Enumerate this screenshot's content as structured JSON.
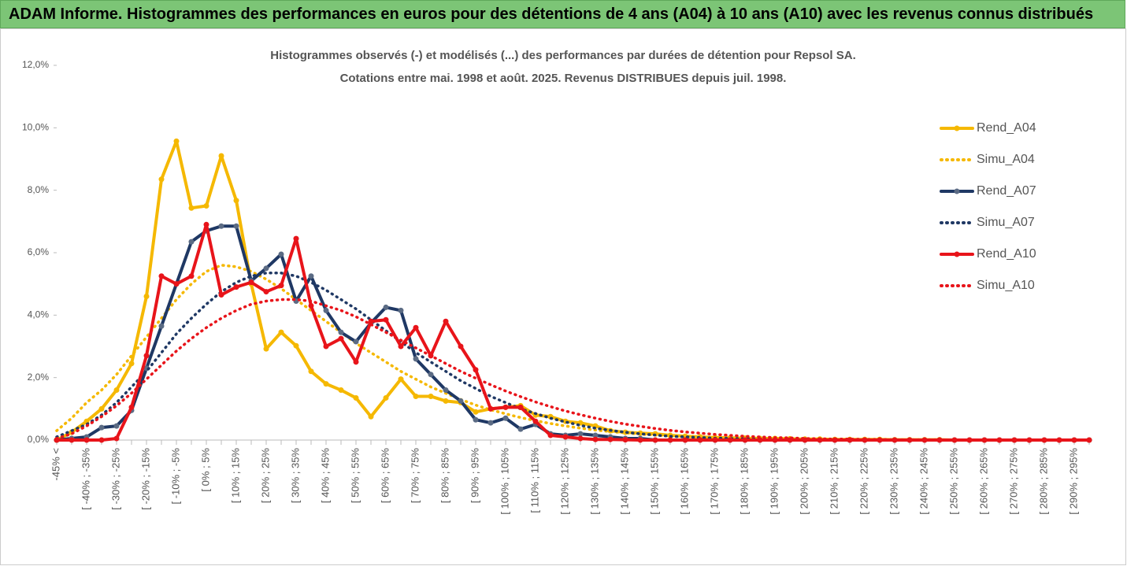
{
  "header": {
    "title": "ADAM Informe. Histogrammes des performances en euros pour des détentions de 4 ans (A04) à 10 ans (A10) avec les revenus connus distribués"
  },
  "chart_data": {
    "type": "line",
    "title": [
      "Histogrammes observés (-) et modélisés (...) des performances par durées de détention pour Repsol SA.",
      "Cotations entre mai. 1998 et août. 2025. Revenus DISTRIBUES depuis juil. 1998."
    ],
    "categories": [
      "-45% <",
      null,
      "[ -40% ; -35%",
      null,
      "[ -30% ; -25%",
      null,
      "[ -20% ; -15%",
      null,
      "[ -10% ; -5%",
      null,
      "[ 0% ; 5%",
      null,
      "[ 10% ; 15%",
      null,
      "[ 20% ; 25%",
      null,
      "[ 30% ; 35%",
      null,
      "[ 40% ; 45%",
      null,
      "[ 50% ; 55%",
      null,
      "[ 60% ; 65%",
      null,
      "[ 70% ; 75%",
      null,
      "[ 80% ; 85%",
      null,
      "[ 90% ; 95%",
      null,
      "[ 100% ; 105%",
      null,
      "[ 110% ; 115%",
      null,
      "[ 120% ; 125%",
      null,
      "[ 130% ; 135%",
      null,
      "[ 140% ; 145%",
      null,
      "[ 150% ; 155%",
      null,
      "[ 160% ; 165%",
      null,
      "[ 170% ; 175%",
      null,
      "[ 180% ; 185%",
      null,
      "[ 190% ; 195%",
      null,
      "[ 200% ; 205%",
      null,
      "[ 210% ; 215%",
      null,
      "[ 220% ; 225%",
      null,
      "[ 230% ; 235%",
      null,
      "[ 240% ; 245%",
      null,
      "[ 250% ; 255%",
      null,
      "[ 260% ; 265%",
      null,
      "[ 270% ; 275%",
      null,
      "[ 280% ; 285%",
      null,
      "[ 290% ; 295%",
      null
    ],
    "ylim": [
      0,
      12
    ],
    "yticks": [
      {
        "value": 0,
        "label": "0,0%"
      },
      {
        "value": 2,
        "label": "2,0%"
      },
      {
        "value": 4,
        "label": "4,0%"
      },
      {
        "value": 6,
        "label": "6,0%"
      },
      {
        "value": 8,
        "label": "8,0%"
      },
      {
        "value": 10,
        "label": "10,0%"
      },
      {
        "value": 12,
        "label": "12,0%"
      }
    ],
    "legend": "right",
    "series": [
      {
        "name": "Rend_A04",
        "color": "#f5b800",
        "style": "solid",
        "values": [
          0,
          0.25,
          0.6,
          1.0,
          1.6,
          2.45,
          4.6,
          8.35,
          9.57,
          7.43,
          7.5,
          9.1,
          7.67,
          5.0,
          2.92,
          3.45,
          3.02,
          2.2,
          1.8,
          1.6,
          1.35,
          0.75,
          1.35,
          1.95,
          1.4,
          1.4,
          1.25,
          1.2,
          0.9,
          1.0,
          1.05,
          1.1,
          0.8,
          0.75,
          0.6,
          0.55,
          0.45,
          0.3,
          0.25,
          0.22,
          0.2,
          0.15,
          0.12,
          0.1,
          0.08,
          0.07,
          0.06,
          0.05,
          0.05,
          0.04,
          0.03,
          0.03,
          0.02,
          0.02,
          0.02,
          0.02,
          0.01,
          0.01,
          0.01,
          0.01,
          0,
          0,
          0,
          0,
          0,
          0,
          0,
          0,
          0,
          0
        ]
      },
      {
        "name": "Simu_A04",
        "color": "#f5b800",
        "style": "dotted",
        "values": [
          0.3,
          0.7,
          1.2,
          1.6,
          2.1,
          2.7,
          3.3,
          3.9,
          4.5,
          5.0,
          5.4,
          5.6,
          5.55,
          5.4,
          5.15,
          4.85,
          4.5,
          4.15,
          3.8,
          3.45,
          3.1,
          2.8,
          2.5,
          2.2,
          1.95,
          1.7,
          1.5,
          1.3,
          1.12,
          0.97,
          0.84,
          0.72,
          0.62,
          0.53,
          0.45,
          0.38,
          0.32,
          0.27,
          0.23,
          0.19,
          0.16,
          0.13,
          0.11,
          0.09,
          0.07,
          0.06,
          0.05,
          0.04,
          0.03,
          0.03,
          0.02,
          0.02,
          0.02,
          0.01,
          0.01,
          0.01,
          0.01,
          0.01,
          0,
          0,
          0,
          0,
          0,
          0,
          0,
          0,
          0,
          0,
          0,
          0
        ]
      },
      {
        "name": "Rend_A07",
        "color": "#1f3864",
        "style": "solid",
        "values": [
          0,
          0.05,
          0.1,
          0.4,
          0.45,
          0.95,
          2.3,
          3.65,
          5.0,
          6.35,
          6.7,
          6.85,
          6.85,
          5.1,
          5.5,
          5.95,
          4.45,
          5.25,
          4.15,
          3.45,
          3.15,
          3.75,
          4.25,
          4.15,
          2.6,
          2.1,
          1.6,
          1.25,
          0.65,
          0.55,
          0.7,
          0.35,
          0.5,
          0.2,
          0.15,
          0.2,
          0.15,
          0.1,
          0.05,
          0.05,
          0,
          0,
          0,
          0,
          0,
          0,
          0,
          0,
          0,
          0,
          0,
          0,
          0,
          0,
          0,
          0,
          0,
          0,
          0,
          0,
          0,
          0,
          0,
          0,
          0,
          0,
          0,
          0,
          0,
          0
        ]
      },
      {
        "name": "Simu_A07",
        "color": "#1f3864",
        "style": "dotted",
        "values": [
          0.1,
          0.3,
          0.5,
          0.8,
          1.2,
          1.7,
          2.2,
          2.8,
          3.4,
          3.9,
          4.35,
          4.75,
          5.05,
          5.25,
          5.35,
          5.35,
          5.25,
          5.05,
          4.8,
          4.5,
          4.2,
          3.85,
          3.5,
          3.15,
          2.8,
          2.5,
          2.2,
          1.9,
          1.65,
          1.4,
          1.2,
          1.0,
          0.85,
          0.7,
          0.58,
          0.47,
          0.38,
          0.31,
          0.25,
          0.2,
          0.16,
          0.12,
          0.1,
          0.08,
          0.06,
          0.05,
          0.04,
          0.03,
          0.02,
          0.02,
          0.01,
          0.01,
          0.01,
          0.01,
          0.01,
          0,
          0,
          0,
          0,
          0,
          0,
          0,
          0,
          0,
          0,
          0,
          0,
          0,
          0,
          0
        ]
      },
      {
        "name": "Rend_A10",
        "color": "#e8141a",
        "style": "solid",
        "values": [
          0,
          0,
          0,
          0,
          0.05,
          1.05,
          2.7,
          5.25,
          5.0,
          5.25,
          6.9,
          4.65,
          4.9,
          5.05,
          4.75,
          4.95,
          6.45,
          4.3,
          3.0,
          3.25,
          2.5,
          3.8,
          3.85,
          3.0,
          3.6,
          2.7,
          3.8,
          3.0,
          2.25,
          1.0,
          1.05,
          1.05,
          0.6,
          0.15,
          0.1,
          0.05,
          0.02,
          0.02,
          0.01,
          0,
          0,
          0,
          0,
          0,
          0,
          0,
          0,
          0,
          0,
          0,
          0,
          0,
          0,
          0,
          0,
          0,
          0,
          0,
          0,
          0,
          0,
          0,
          0,
          0,
          0,
          0,
          0,
          0,
          0,
          0
        ]
      },
      {
        "name": "Simu_A10",
        "color": "#e8141a",
        "style": "dotted",
        "values": [
          0.05,
          0.2,
          0.45,
          0.75,
          1.1,
          1.5,
          1.95,
          2.4,
          2.85,
          3.25,
          3.6,
          3.9,
          4.15,
          4.35,
          4.45,
          4.5,
          4.5,
          4.45,
          4.3,
          4.15,
          3.95,
          3.7,
          3.45,
          3.2,
          2.95,
          2.7,
          2.45,
          2.2,
          1.98,
          1.77,
          1.57,
          1.39,
          1.22,
          1.07,
          0.93,
          0.81,
          0.7,
          0.6,
          0.51,
          0.44,
          0.37,
          0.31,
          0.26,
          0.22,
          0.18,
          0.15,
          0.12,
          0.1,
          0.08,
          0.07,
          0.05,
          0.04,
          0.03,
          0.03,
          0.02,
          0.02,
          0.01,
          0.01,
          0.01,
          0.01,
          0,
          0,
          0,
          0,
          0,
          0,
          0,
          0,
          0,
          0
        ]
      }
    ]
  }
}
